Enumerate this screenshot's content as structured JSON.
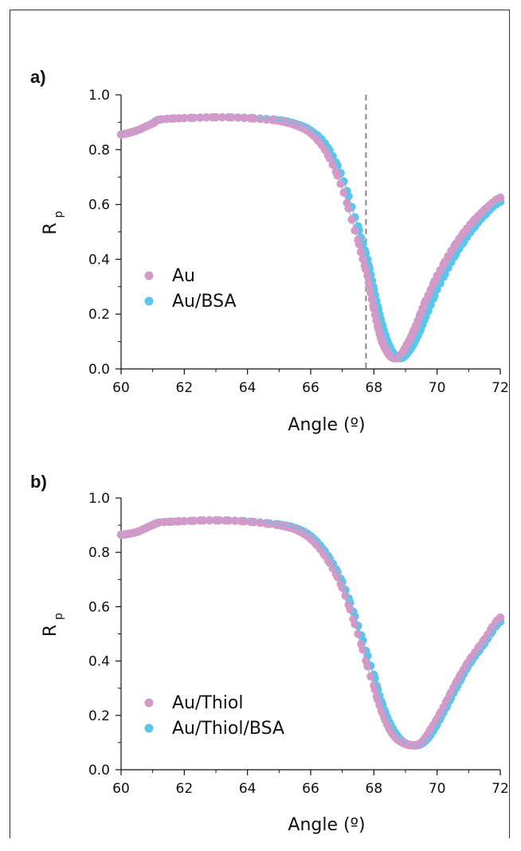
{
  "chart_data": [
    {
      "type": "scatter",
      "panel_label": "a)",
      "xlabel": "Angle (º)",
      "ylabel": "R",
      "ylabel_sub": "p",
      "xlim": [
        60,
        72
      ],
      "ylim": [
        0.0,
        1.0
      ],
      "xticks": [
        "60",
        "62",
        "64",
        "66",
        "68",
        "70",
        "72"
      ],
      "yticks": [
        "0.0",
        "0.2",
        "0.4",
        "0.6",
        "0.8",
        "1.0"
      ],
      "grid": false,
      "legend_position": "bottom-left",
      "vline_x": 67.75,
      "series": [
        {
          "name": "Au",
          "color": "#d39ac9",
          "markers": true,
          "fit_line": true,
          "x": [
            60,
            60.5,
            61,
            61.2,
            62,
            63,
            64,
            65,
            65.5,
            66,
            66.5,
            67,
            67.5,
            67.8,
            68,
            68.2,
            68.4,
            68.6,
            68.8,
            69,
            69.3,
            69.6,
            70,
            70.5,
            71,
            71.5,
            72
          ],
          "y": [
            0.855,
            0.87,
            0.895,
            0.91,
            0.915,
            0.918,
            0.915,
            0.905,
            0.89,
            0.86,
            0.79,
            0.66,
            0.47,
            0.34,
            0.22,
            0.12,
            0.065,
            0.04,
            0.045,
            0.08,
            0.15,
            0.24,
            0.34,
            0.44,
            0.52,
            0.58,
            0.625
          ]
        },
        {
          "name": "Au/BSA",
          "color": "#5bc6ea",
          "markers": true,
          "fit_line": true,
          "x": [
            60,
            60.5,
            61,
            61.2,
            62,
            63,
            64,
            65,
            65.5,
            66,
            66.5,
            67,
            67.5,
            67.8,
            68,
            68.2,
            68.4,
            68.6,
            68.8,
            69,
            69.3,
            69.6,
            70,
            70.5,
            71,
            71.5,
            72
          ],
          "y": [
            0.855,
            0.87,
            0.895,
            0.91,
            0.915,
            0.918,
            0.916,
            0.908,
            0.895,
            0.87,
            0.815,
            0.7,
            0.52,
            0.4,
            0.29,
            0.19,
            0.11,
            0.06,
            0.04,
            0.05,
            0.1,
            0.18,
            0.29,
            0.4,
            0.49,
            0.56,
            0.61
          ]
        }
      ]
    },
    {
      "type": "scatter",
      "panel_label": "b)",
      "xlabel": "Angle (º)",
      "ylabel": "R",
      "ylabel_sub": "p",
      "xlim": [
        60,
        72
      ],
      "ylim": [
        0.0,
        1.0
      ],
      "xticks": [
        "60",
        "62",
        "64",
        "66",
        "68",
        "70",
        "72"
      ],
      "yticks": [
        "0.0",
        "0.2",
        "0.4",
        "0.6",
        "0.8",
        "1.0"
      ],
      "grid": false,
      "legend_position": "bottom-left",
      "series": [
        {
          "name": "Au/Thiol",
          "color": "#d39ac9",
          "markers": true,
          "fit_line": true,
          "x": [
            60,
            60.5,
            61,
            61.2,
            62,
            63,
            64,
            65,
            65.5,
            66,
            66.5,
            67,
            67.5,
            68,
            68.3,
            68.6,
            68.9,
            69.2,
            69.5,
            69.8,
            70.2,
            70.6,
            71,
            71.5,
            72
          ],
          "y": [
            0.865,
            0.875,
            0.9,
            0.91,
            0.915,
            0.918,
            0.913,
            0.9,
            0.885,
            0.85,
            0.78,
            0.67,
            0.5,
            0.31,
            0.2,
            0.13,
            0.1,
            0.09,
            0.1,
            0.15,
            0.23,
            0.32,
            0.4,
            0.48,
            0.56
          ]
        },
        {
          "name": "Au/Thiol/BSA",
          "color": "#5bc6ea",
          "markers": true,
          "fit_line": true,
          "x": [
            60,
            60.5,
            61,
            61.2,
            62,
            63,
            64,
            65,
            65.5,
            66,
            66.5,
            67,
            67.5,
            68,
            68.3,
            68.6,
            68.9,
            69.2,
            69.5,
            69.8,
            70.2,
            70.6,
            71,
            71.5,
            72
          ],
          "y": [
            0.865,
            0.875,
            0.9,
            0.91,
            0.915,
            0.918,
            0.914,
            0.903,
            0.89,
            0.86,
            0.795,
            0.69,
            0.53,
            0.35,
            0.23,
            0.15,
            0.105,
            0.09,
            0.095,
            0.13,
            0.21,
            0.3,
            0.385,
            0.465,
            0.545
          ]
        }
      ]
    }
  ]
}
